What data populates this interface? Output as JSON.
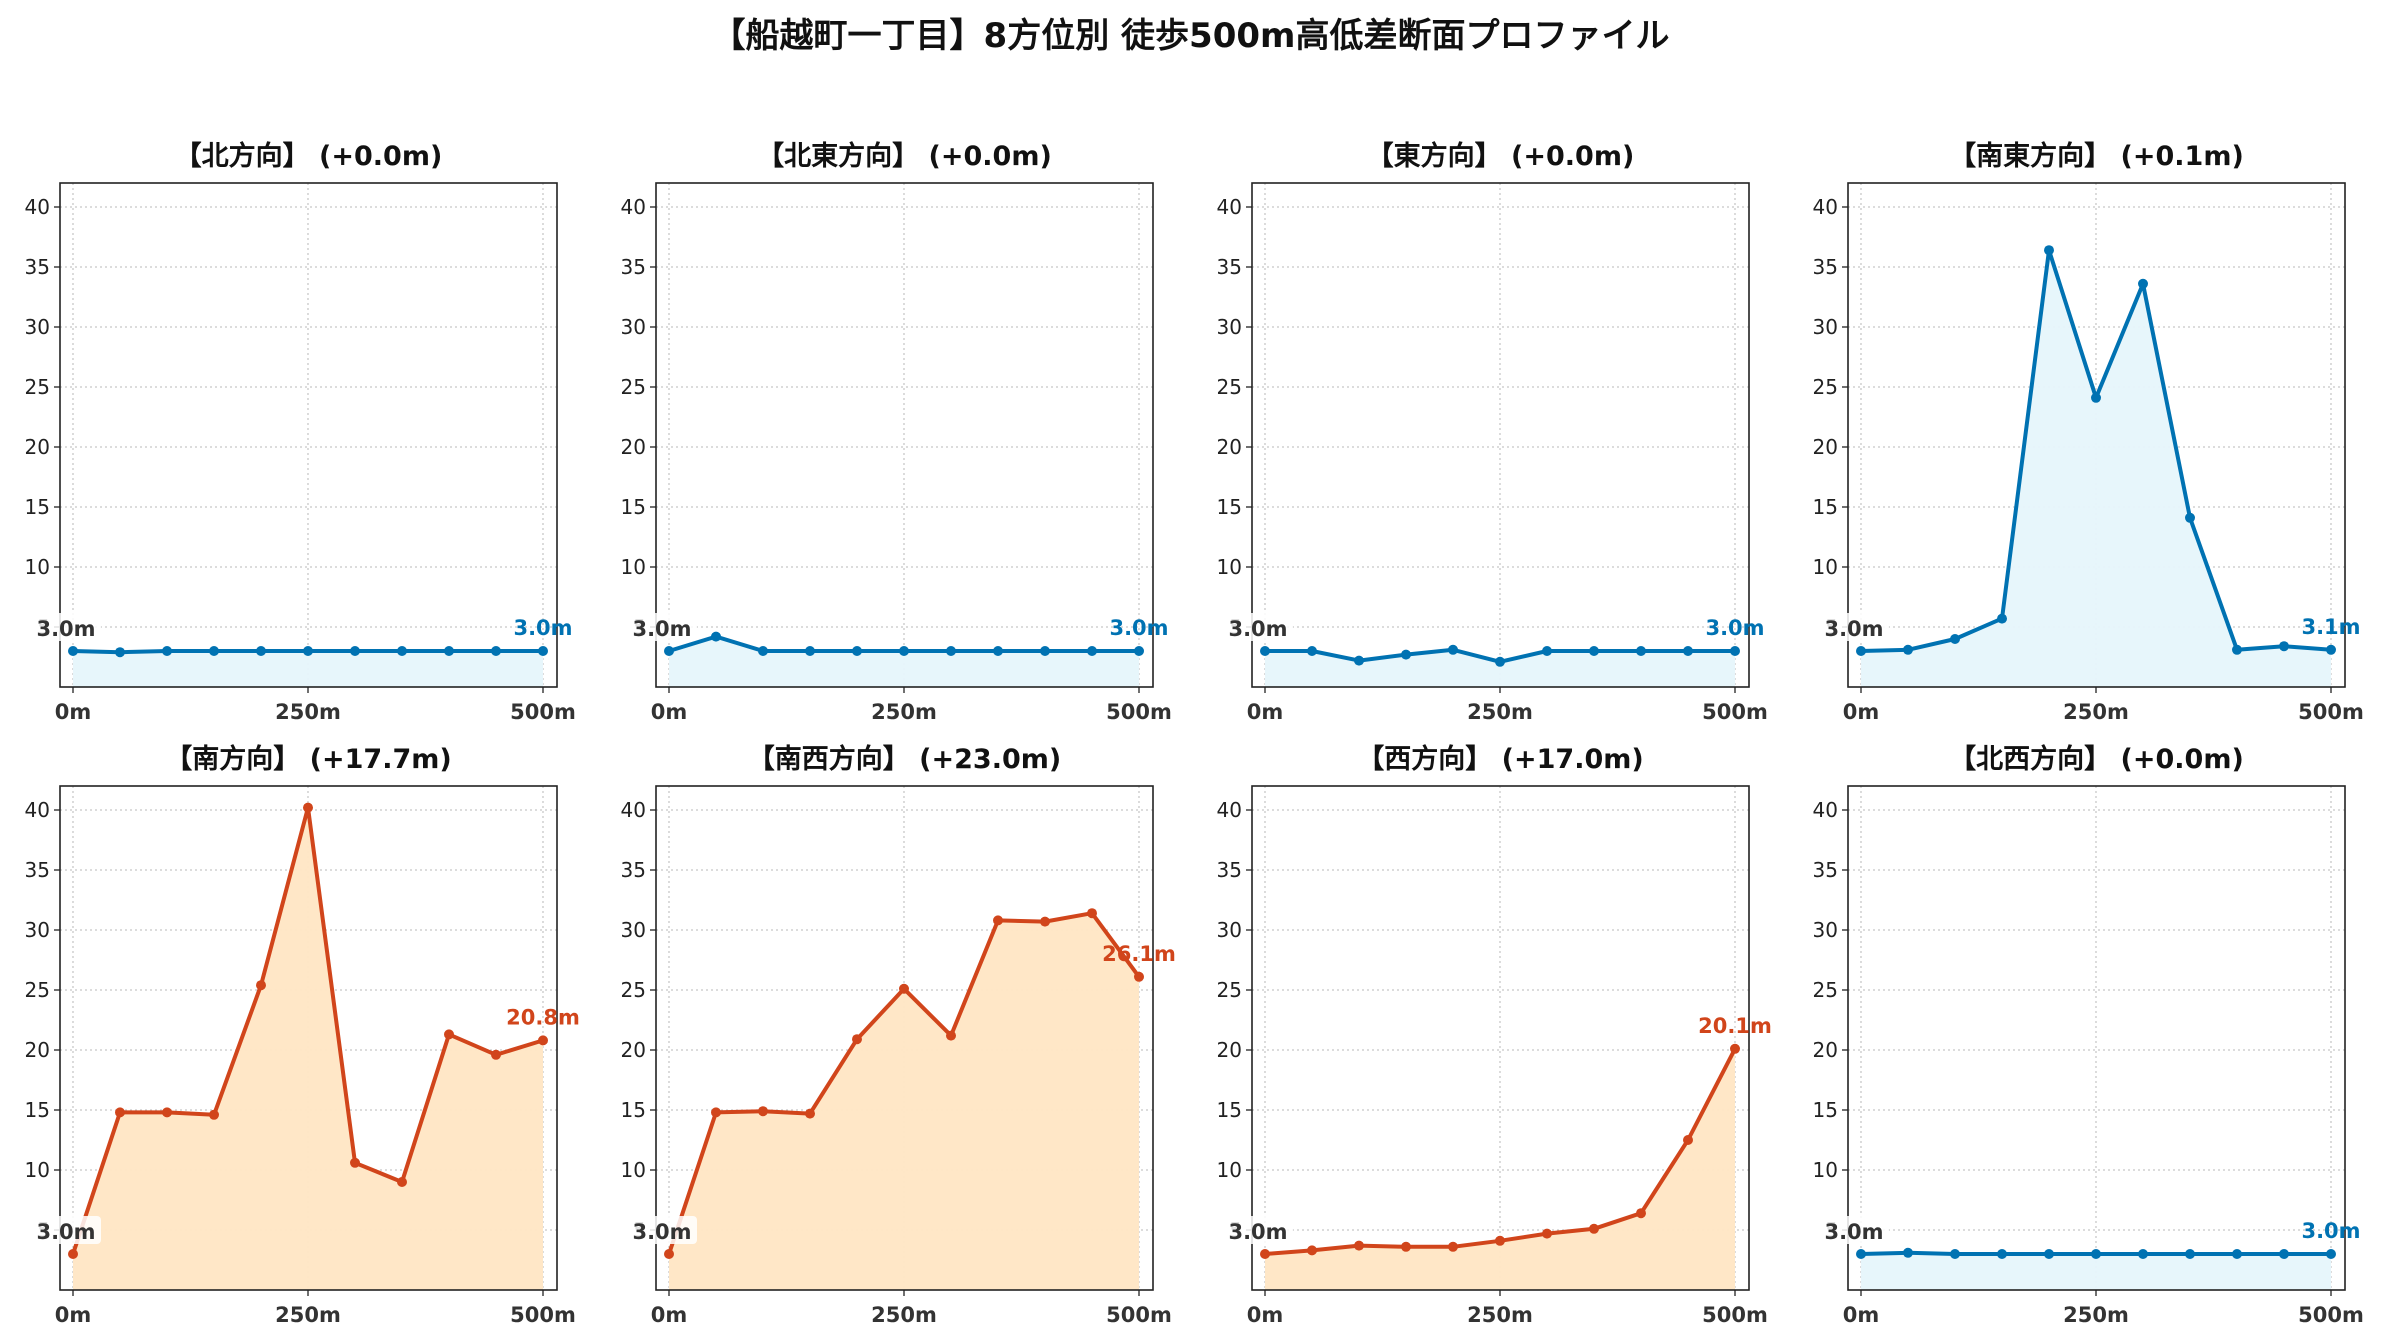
{
  "suptitle": "【船越町一丁目】8方位別 徒歩500m高低差断面プロファイル",
  "colors": {
    "flat_line": "#1f77b4",
    "flat_line_dark": "#0072b2",
    "flat_fill": "#e6f5fb",
    "slope_line": "#d1451b",
    "slope_fill": "#ffe6c4",
    "grid": "#c8c8c8",
    "axis": "#222222"
  },
  "chart_data": [
    {
      "type": "area",
      "title": "【北方向】 (+0.0m)",
      "style": "flat",
      "x": [
        0,
        50,
        100,
        150,
        200,
        250,
        300,
        350,
        400,
        450,
        500
      ],
      "y": [
        3.0,
        2.9,
        3.0,
        3.0,
        3.0,
        3.0,
        3.0,
        3.0,
        3.0,
        3.0,
        3.0
      ],
      "start_label": "3.0m",
      "end_label": "3.0m",
      "xticks": [
        "0m",
        "250m",
        "500m"
      ],
      "yticks": [
        5,
        10,
        15,
        20,
        25,
        30,
        35,
        40
      ],
      "xlim": [
        0,
        500
      ],
      "ylim": [
        0,
        42
      ],
      "grid": true
    },
    {
      "type": "area",
      "title": "【北東方向】 (+0.0m)",
      "style": "flat",
      "x": [
        0,
        50,
        100,
        150,
        200,
        250,
        300,
        350,
        400,
        450,
        500
      ],
      "y": [
        3.0,
        4.2,
        3.0,
        3.0,
        3.0,
        3.0,
        3.0,
        3.0,
        3.0,
        3.0,
        3.0
      ],
      "start_label": "3.0m",
      "end_label": "3.0m",
      "xticks": [
        "0m",
        "250m",
        "500m"
      ],
      "yticks": [
        5,
        10,
        15,
        20,
        25,
        30,
        35,
        40
      ],
      "xlim": [
        0,
        500
      ],
      "ylim": [
        0,
        42
      ],
      "grid": true
    },
    {
      "type": "area",
      "title": "【東方向】 (+0.0m)",
      "style": "flat",
      "x": [
        0,
        50,
        100,
        150,
        200,
        250,
        300,
        350,
        400,
        450,
        500
      ],
      "y": [
        3.0,
        3.0,
        2.2,
        2.7,
        3.1,
        2.1,
        3.0,
        3.0,
        3.0,
        3.0,
        3.0
      ],
      "start_label": "3.0m",
      "end_label": "3.0m",
      "xticks": [
        "0m",
        "250m",
        "500m"
      ],
      "yticks": [
        5,
        10,
        15,
        20,
        25,
        30,
        35,
        40
      ],
      "xlim": [
        0,
        500
      ],
      "ylim": [
        0,
        42
      ],
      "grid": true
    },
    {
      "type": "area",
      "title": "【南東方向】 (+0.1m)",
      "style": "flat",
      "x": [
        0,
        50,
        100,
        150,
        200,
        250,
        300,
        350,
        400,
        450,
        500
      ],
      "y": [
        3.0,
        3.1,
        4.0,
        5.7,
        36.4,
        24.1,
        33.6,
        14.1,
        3.1,
        3.4,
        3.1
      ],
      "start_label": "3.0m",
      "end_label": "3.1m",
      "xticks": [
        "0m",
        "250m",
        "500m"
      ],
      "yticks": [
        5,
        10,
        15,
        20,
        25,
        30,
        35,
        40
      ],
      "xlim": [
        0,
        500
      ],
      "ylim": [
        0,
        42
      ],
      "grid": true
    },
    {
      "type": "area",
      "title": "【南方向】 (+17.7m)",
      "style": "slope",
      "x": [
        0,
        50,
        100,
        150,
        200,
        250,
        300,
        350,
        400,
        450,
        500
      ],
      "y": [
        3.0,
        14.8,
        14.8,
        14.6,
        25.4,
        40.2,
        10.6,
        9.0,
        21.3,
        19.6,
        20.8
      ],
      "start_label": "3.0m",
      "end_label": "20.8m",
      "xticks": [
        "0m",
        "250m",
        "500m"
      ],
      "yticks": [
        5,
        10,
        15,
        20,
        25,
        30,
        35,
        40
      ],
      "xlim": [
        0,
        500
      ],
      "ylim": [
        0,
        42
      ],
      "grid": true
    },
    {
      "type": "area",
      "title": "【南西方向】 (+23.0m)",
      "style": "slope",
      "x": [
        0,
        50,
        100,
        150,
        200,
        250,
        300,
        350,
        400,
        450,
        500
      ],
      "y": [
        3.0,
        14.8,
        14.9,
        14.7,
        20.9,
        25.1,
        21.2,
        30.8,
        30.7,
        31.4,
        26.1
      ],
      "start_label": "3.0m",
      "end_label": "26.1m",
      "xticks": [
        "0m",
        "250m",
        "500m"
      ],
      "yticks": [
        5,
        10,
        15,
        20,
        25,
        30,
        35,
        40
      ],
      "xlim": [
        0,
        500
      ],
      "ylim": [
        0,
        42
      ],
      "grid": true
    },
    {
      "type": "area",
      "title": "【西方向】 (+17.0m)",
      "style": "slope",
      "x": [
        0,
        50,
        100,
        150,
        200,
        250,
        300,
        350,
        400,
        450,
        500
      ],
      "y": [
        3.0,
        3.3,
        3.7,
        3.6,
        3.6,
        4.1,
        4.7,
        5.1,
        6.4,
        12.5,
        20.1
      ],
      "start_label": "3.0m",
      "end_label": "20.1m",
      "xticks": [
        "0m",
        "250m",
        "500m"
      ],
      "yticks": [
        5,
        10,
        15,
        20,
        25,
        30,
        35,
        40
      ],
      "xlim": [
        0,
        500
      ],
      "ylim": [
        0,
        42
      ],
      "grid": true
    },
    {
      "type": "area",
      "title": "【北西方向】 (+0.0m)",
      "style": "flat",
      "x": [
        0,
        50,
        100,
        150,
        200,
        250,
        300,
        350,
        400,
        450,
        500
      ],
      "y": [
        3.0,
        3.1,
        3.0,
        3.0,
        3.0,
        3.0,
        3.0,
        3.0,
        3.0,
        3.0,
        3.0
      ],
      "start_label": "3.0m",
      "end_label": "3.0m",
      "xticks": [
        "0m",
        "250m",
        "500m"
      ],
      "yticks": [
        5,
        10,
        15,
        20,
        25,
        30,
        35,
        40
      ],
      "xlim": [
        0,
        500
      ],
      "ylim": [
        0,
        42
      ],
      "grid": true
    }
  ]
}
